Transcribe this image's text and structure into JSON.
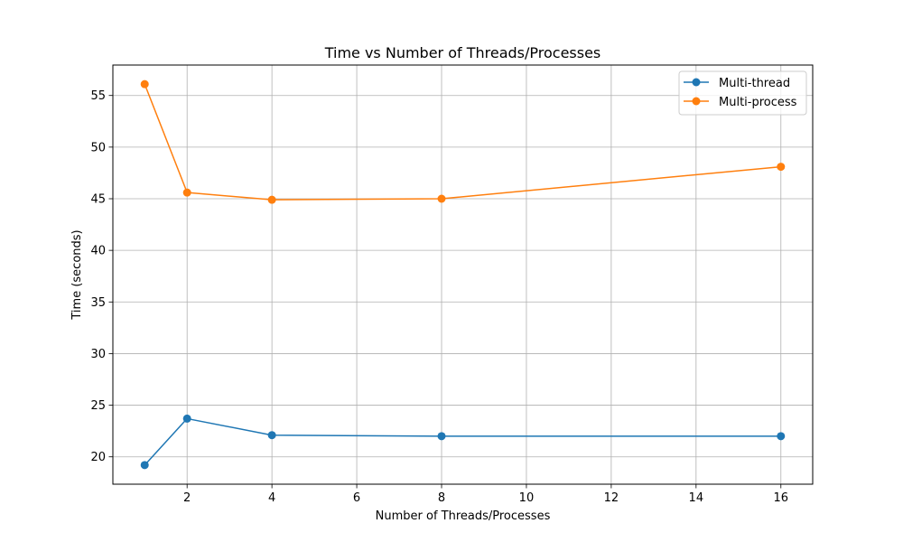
{
  "chart_data": {
    "type": "line",
    "title": "Time vs Number of Threads/Processes",
    "xlabel": "Number of Threads/Processes",
    "ylabel": "Time (seconds)",
    "x": [
      1,
      2,
      4,
      8,
      16
    ],
    "series": [
      {
        "name": "Multi-thread",
        "color": "#1f77b4",
        "values": [
          19.2,
          23.7,
          22.1,
          22.0,
          22.0
        ]
      },
      {
        "name": "Multi-process",
        "color": "#ff7f0e",
        "values": [
          56.1,
          45.6,
          44.9,
          45.0,
          48.1
        ]
      }
    ],
    "xlim": [
      0.25,
      16.75
    ],
    "ylim": [
      17.35,
      57.95
    ],
    "xticks": [
      2,
      4,
      6,
      8,
      10,
      12,
      14,
      16
    ],
    "yticks": [
      20,
      25,
      30,
      35,
      40,
      45,
      50,
      55
    ],
    "grid": true,
    "legend_position": "upper-right"
  }
}
